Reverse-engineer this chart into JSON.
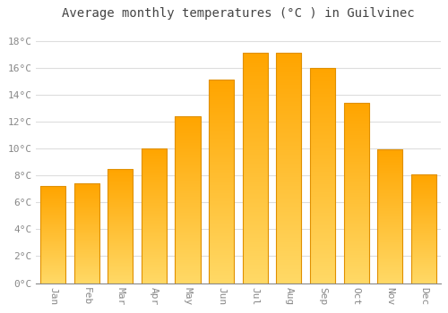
{
  "title": "Average monthly temperatures (°C ) in Guilvinec",
  "months": [
    "Jan",
    "Feb",
    "Mar",
    "Apr",
    "May",
    "Jun",
    "Jul",
    "Aug",
    "Sep",
    "Oct",
    "Nov",
    "Dec"
  ],
  "values": [
    7.2,
    7.4,
    8.5,
    10.0,
    12.4,
    15.1,
    17.1,
    17.1,
    16.0,
    13.4,
    9.9,
    8.1
  ],
  "bar_color_top": "#FFA500",
  "bar_color_bottom": "#FFD966",
  "bar_edge_color": "#E09000",
  "background_color": "#FFFFFF",
  "plot_bg_color": "#FFFFFF",
  "grid_color": "#DDDDDD",
  "tick_label_color": "#888888",
  "title_color": "#444444",
  "ylim": [
    0,
    19
  ],
  "yticks": [
    0,
    2,
    4,
    6,
    8,
    10,
    12,
    14,
    16,
    18
  ],
  "ytick_labels": [
    "0°C",
    "2°C",
    "4°C",
    "6°C",
    "8°C",
    "10°C",
    "12°C",
    "14°C",
    "16°C",
    "18°C"
  ],
  "title_fontsize": 10,
  "tick_fontsize": 8,
  "bar_width": 0.75,
  "gradient_steps": 100
}
